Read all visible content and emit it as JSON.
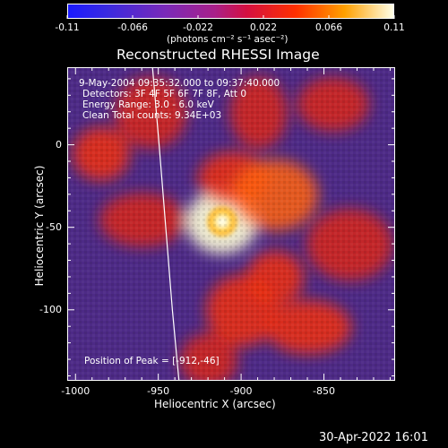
{
  "window": {
    "title": "Reconstructed RHESSI Image",
    "footer_timestamp": "30-Apr-2022 16:01"
  },
  "colorbar": {
    "ticks": [
      "-0.11",
      "-0.066",
      "-0.022",
      "0.022",
      "0.066",
      "0.11"
    ],
    "unit_label": "(photons cm⁻² s⁻¹ asec⁻²)",
    "range": [
      -0.11,
      0.11
    ]
  },
  "annotations": {
    "time_range": "9-May-2004 09:35:32.000 to 09:37:40.000",
    "detectors": "Detectors: 3F 4F 5F 6F 7F 8F, Att 0",
    "energy_range": "Energy Range: 3.0 - 6.0 keV",
    "clean_counts": "Clean    Total counts: 9.34E+03",
    "peak_position": "Position of Peak = [-912,-46]"
  },
  "colors": {
    "background": "#000000",
    "low": "#2b2bd6",
    "mid": "#8a2fa8",
    "high": "#ff3a00",
    "peak": "#ffffe0"
  },
  "chart_data": {
    "type": "heatmap",
    "title": "Reconstructed RHESSI Image",
    "xlabel": "Heliocentric X (arcsec)",
    "ylabel": "Heliocentric Y (arcsec)",
    "xlim": [
      -1005,
      -807
    ],
    "ylim": [
      -143,
      47
    ],
    "xticks": [
      -1000,
      -950,
      -900,
      -850
    ],
    "xtick_labels": [
      "-1000",
      "-950",
      "-900",
      "-850"
    ],
    "yticks": [
      0,
      -50,
      -100
    ],
    "ytick_labels": [
      "0",
      "-50",
      "-100"
    ],
    "peak": {
      "x": -912,
      "y": -46,
      "value": 0.11
    },
    "limb_curve": [
      [
        -954,
        47
      ],
      [
        -950,
        0
      ],
      [
        -946,
        -50
      ],
      [
        -942,
        -100
      ],
      [
        -938,
        -143
      ]
    ],
    "emission_regions": [
      {
        "x": -985,
        "y": -5,
        "value": 0.035
      },
      {
        "x": -955,
        "y": 20,
        "value": 0.03
      },
      {
        "x": -960,
        "y": -45,
        "value": 0.025
      },
      {
        "x": -912,
        "y": -46,
        "value": 0.11
      },
      {
        "x": -905,
        "y": -20,
        "value": 0.045
      },
      {
        "x": -880,
        "y": -30,
        "value": 0.05
      },
      {
        "x": -880,
        "y": -80,
        "value": 0.045
      },
      {
        "x": -900,
        "y": -100,
        "value": 0.04
      },
      {
        "x": -860,
        "y": -110,
        "value": 0.04
      },
      {
        "x": -890,
        "y": 20,
        "value": 0.03
      },
      {
        "x": -845,
        "y": 25,
        "value": 0.03
      },
      {
        "x": -835,
        "y": -60,
        "value": 0.025
      },
      {
        "x": -920,
        "y": -130,
        "value": 0.03
      }
    ]
  }
}
